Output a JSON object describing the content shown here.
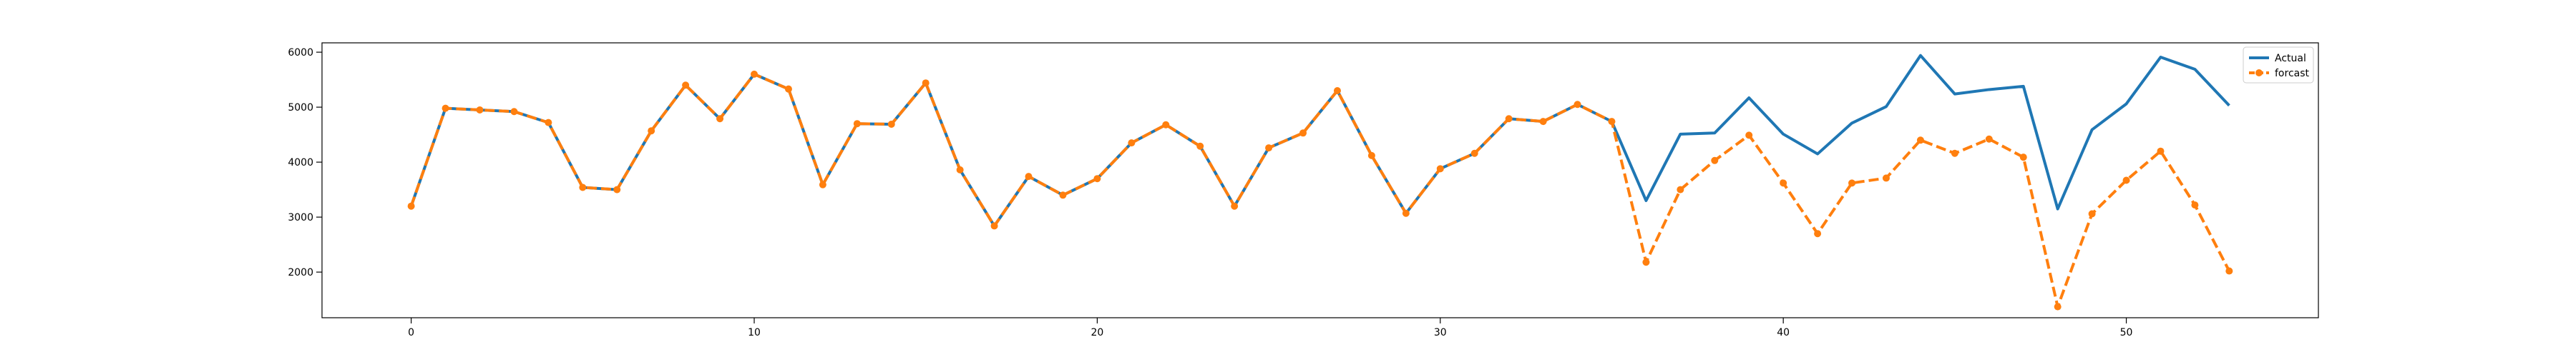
{
  "chart_data": {
    "type": "line",
    "title": "",
    "xlabel": "",
    "ylabel": "",
    "xlim": [
      -2.6,
      55.6
    ],
    "ylim": [
      1170,
      6170
    ],
    "xticks": [
      0,
      10,
      20,
      30,
      40,
      50
    ],
    "yticks": [
      2000,
      3000,
      4000,
      5000,
      6000
    ],
    "grid": false,
    "legend": "top-right",
    "x": [
      0,
      1,
      2,
      3,
      4,
      5,
      6,
      7,
      8,
      9,
      10,
      11,
      12,
      13,
      14,
      15,
      16,
      17,
      18,
      19,
      20,
      21,
      22,
      23,
      24,
      25,
      26,
      27,
      28,
      29,
      30,
      31,
      32,
      33,
      34,
      35,
      36,
      37,
      38,
      39,
      40,
      41,
      42,
      43,
      44,
      45,
      46,
      47,
      48,
      49,
      50,
      51,
      52,
      53
    ],
    "series": [
      {
        "name": "Actual",
        "color": "#1f77b4",
        "style": "solid",
        "marker": "none",
        "values": [
          3200,
          4980,
          4950,
          4920,
          4720,
          3540,
          3500,
          4570,
          5400,
          4790,
          5600,
          5330,
          3590,
          4700,
          4690,
          5440,
          3860,
          2840,
          3740,
          3400,
          3700,
          4350,
          4680,
          4290,
          3200,
          4260,
          4530,
          5300,
          4120,
          3070,
          3880,
          4160,
          4790,
          4740,
          5050,
          4740,
          3300,
          4510,
          4530,
          5170,
          4510,
          4150,
          4710,
          5010,
          5940,
          5240,
          5320,
          5380,
          3150,
          4590,
          5060,
          5910,
          5690,
          5030
        ]
      },
      {
        "name": "forcast",
        "color": "#ff7f0e",
        "style": "dashed",
        "marker": "circle",
        "values": [
          3200,
          4980,
          4950,
          4920,
          4720,
          3540,
          3500,
          4570,
          5400,
          4790,
          5600,
          5330,
          3590,
          4700,
          4690,
          5440,
          3860,
          2840,
          3740,
          3400,
          3700,
          4350,
          4680,
          4290,
          3200,
          4260,
          4530,
          5300,
          4120,
          3070,
          3880,
          4160,
          4790,
          4740,
          5050,
          4740,
          2180,
          3500,
          4030,
          4490,
          3620,
          2700,
          3620,
          3710,
          4400,
          4160,
          4420,
          4090,
          1370,
          3060,
          3670,
          4200,
          3220,
          2020
        ]
      }
    ]
  }
}
